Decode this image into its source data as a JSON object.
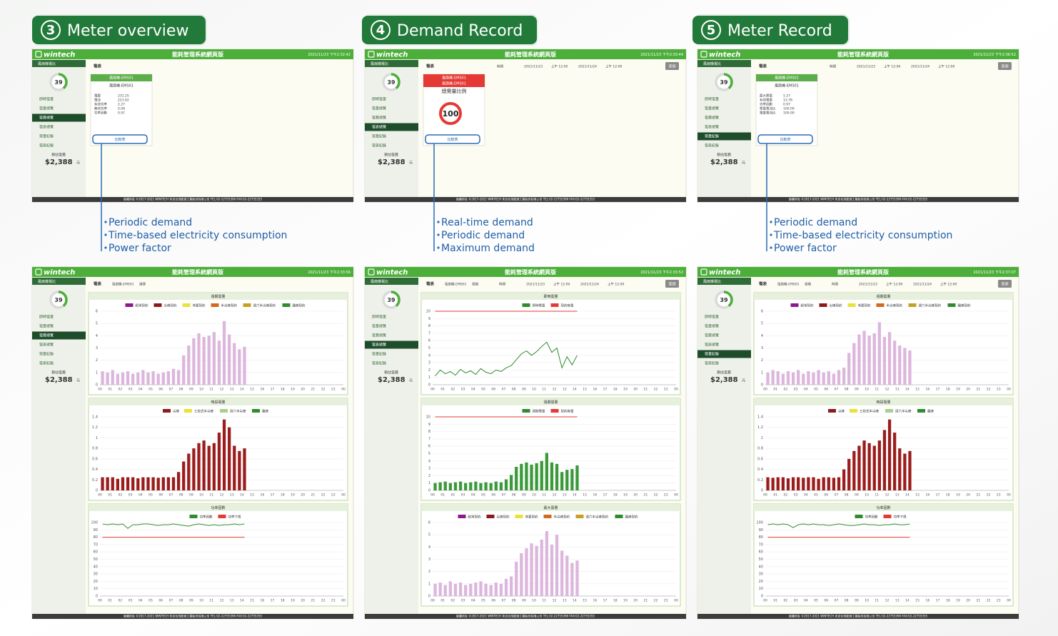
{
  "app": {
    "logo": "wintech",
    "system_title": "能耗管理系統網頁版",
    "site": "風扇機電比",
    "gauge": "39",
    "menu": [
      "即時電量",
      "電量總覽",
      "電費總覽",
      "電表總覽",
      "需量紀錄",
      "電表紀錄"
    ],
    "cost_label": "預估電費",
    "cost": "$2,388",
    "cost_unit": "元",
    "footer": "版權所有 ©2017-2021 WINTECH 禾自台灣能源工業股份有限公司 TEL:02-22755396 FAX:02-22755355"
  },
  "hours": [
    "00",
    "01",
    "02",
    "03",
    "04",
    "05",
    "06",
    "07",
    "08",
    "09",
    "10",
    "11",
    "12",
    "13",
    "14",
    "15",
    "16",
    "17",
    "18",
    "19",
    "20",
    "21",
    "22",
    "23",
    "00"
  ],
  "panels": [
    {
      "number": "3",
      "title": "Meter overview",
      "bullets": [
        "Periodic demand",
        "Time-based electricity consumption",
        "Power factor"
      ],
      "top_screen": {
        "timestamp": "2021/11/23 下午2:32:42",
        "active_menu": 3,
        "toolbar": {
          "tab": "電表",
          "fields": []
        },
        "card": {
          "header": [
            "風扇機-EMS01"
          ],
          "header_color": "#5cae4a",
          "subtitle": "風扇機-EMS01",
          "rows": [
            [
              "電壓",
              "231.25"
            ],
            [
              "電流",
              "221.62"
            ],
            [
              "有效功率",
              "2.27"
            ],
            [
              "無效功率",
              "0.08"
            ],
            [
              "功率因數",
              "0.97"
            ]
          ],
          "button": "比較表"
        }
      },
      "bottom_screen": {
        "timestamp": "2021/11/23 下午2:33:56",
        "active_menu": 3,
        "toolbar": {
          "tab": "電表",
          "fields": [
            "風扇機-EMS01",
            "選擇"
          ]
        },
        "charts": [
          {
            "type": "bar",
            "title": "週期需量",
            "color": "#dcb6dc",
            "legend": [
              {
                "name": "經常契約",
                "color": "#8b1a8b"
              },
              {
                "name": "尖峰契約",
                "color": "#8b1a1a"
              },
              {
                "name": "非夏契約",
                "color": "#e8e23a"
              },
              {
                "name": "半尖峰契約",
                "color": "#d2691e"
              },
              {
                "name": "週六半尖峰契約",
                "color": "#c8a020"
              },
              {
                "name": "離峰契約",
                "color": "#2e8b2e"
              }
            ],
            "ylim": [
              0,
              6
            ],
            "yticks": [
              0,
              1,
              2,
              3,
              4,
              5,
              6
            ],
            "values": [
              1.1,
              1.0,
              1.2,
              0.9,
              1.0,
              1.1,
              0.9,
              1.0,
              1.2,
              1.0,
              1.1,
              0.9,
              1.0,
              1.1,
              1.3,
              1.2,
              2.4,
              3.2,
              3.8,
              4.2,
              3.9,
              4.0,
              4.3,
              3.6,
              5.2,
              4.1,
              3.4,
              2.9,
              3.1
            ]
          },
          {
            "type": "bar",
            "title": "時段電量",
            "color": "#9b1c1c",
            "legend": [
              {
                "name": "尖峰",
                "color": "#8b1a1a"
              },
              {
                "name": "三段式半尖峰",
                "color": "#e8e23a"
              },
              {
                "name": "周六半尖峰",
                "color": "#a8d08d"
              },
              {
                "name": "離峰",
                "color": "#2e8b2e"
              }
            ],
            "ylim": [
              0,
              1.4
            ],
            "yticks": [
              0,
              0.2,
              0.4,
              0.6,
              0.8,
              1,
              1.2,
              1.4
            ],
            "values": [
              0.25,
              0.25,
              0.25,
              0.22,
              0.25,
              0.25,
              0.25,
              0.23,
              0.25,
              0.25,
              0.25,
              0.24,
              0.25,
              0.25,
              0.25,
              0.35,
              0.55,
              0.7,
              0.8,
              0.9,
              0.95,
              0.85,
              0.9,
              1.1,
              1.35,
              1.2,
              0.85,
              0.75,
              0.8
            ]
          },
          {
            "type": "line",
            "title": "功率因數",
            "color": "#2e8b2e",
            "limit": 80,
            "limit_color": "#e53935",
            "legend": [
              {
                "name": "功率因數",
                "color": "#2e8b2e"
              },
              {
                "name": "功率下限",
                "color": "#e53935"
              }
            ],
            "ylim": [
              0,
              100
            ],
            "yticks": [
              0,
              10,
              20,
              30,
              40,
              50,
              60,
              70,
              80,
              90,
              100
            ],
            "values": [
              98,
              97,
              98,
              97,
              98,
              92,
              97,
              97,
              98,
              98,
              97,
              96,
              97,
              97,
              98,
              97,
              96,
              95,
              97,
              98,
              97,
              96,
              97,
              96,
              97,
              97,
              98,
              97,
              98
            ]
          }
        ]
      }
    },
    {
      "number": "4",
      "title": "Demand Record",
      "bullets": [
        "Real-time demand",
        "Periodic demand",
        "Maximum demand"
      ],
      "top_screen": {
        "timestamp": "2021/11/23 下午2:33:44",
        "active_menu": 4,
        "toolbar": {
          "tab": "電表",
          "fields": [
            "時間",
            "2021/11/23",
            "上午 12:00",
            "2021/11/24",
            "上午 12:00"
          ],
          "query": "查詢"
        },
        "card": {
          "header": [
            "風扇機-EMS01",
            "風扇機-EMS01"
          ],
          "header_color": "#e53935",
          "subtitle": "總需量比例",
          "gauge": "100",
          "button": "比較表"
        }
      },
      "bottom_screen": {
        "timestamp": "2021/11/23 下午2:33:52",
        "active_menu": 4,
        "toolbar": {
          "tab": "電表",
          "fields": [
            "風扇機-EMS01",
            "週期",
            "時間",
            "2021/11/23",
            "上午 12:00",
            "2021/11/24",
            "上午 12:00"
          ],
          "query": "查詢"
        },
        "charts": [
          {
            "type": "line",
            "title": "即時需量",
            "color": "#2e8b2e",
            "limit": 10,
            "limit_color": "#e53935",
            "legend": [
              {
                "name": "即時需量",
                "color": "#2e8b2e"
              },
              {
                "name": "契約容量",
                "color": "#e53935"
              }
            ],
            "ylim": [
              0,
              10
            ],
            "yticks": [
              0,
              1,
              2,
              3,
              4,
              5,
              6,
              7,
              8,
              9,
              10
            ],
            "values": [
              1.2,
              2.0,
              1.5,
              1.8,
              1.3,
              2.1,
              1.6,
              1.9,
              1.4,
              2.2,
              1.7,
              1.5,
              2.0,
              1.8,
              2.3,
              2.6,
              3.4,
              4.2,
              4.6,
              4.0,
              4.5,
              5.2,
              5.8,
              4.4,
              5.0,
              2.3,
              3.8,
              2.7,
              4.0
            ]
          },
          {
            "type": "bar",
            "title": "週期需量",
            "color": "#3a9a3a",
            "limit": 10,
            "limit_color": "#e53935",
            "legend": [
              {
                "name": "週期需量",
                "color": "#2e8b2e"
              },
              {
                "name": "契約容量",
                "color": "#e53935"
              }
            ],
            "ylim": [
              0,
              10
            ],
            "yticks": [
              0,
              1,
              2,
              3,
              4,
              5,
              6,
              7,
              8,
              9,
              10
            ],
            "values": [
              1.0,
              1.1,
              1.2,
              1.0,
              1.1,
              1.2,
              1.0,
              1.1,
              1.2,
              1.0,
              1.1,
              1.0,
              1.2,
              1.1,
              1.5,
              2.1,
              3.2,
              3.6,
              3.8,
              3.5,
              3.7,
              4.0,
              5.1,
              3.8,
              3.6,
              2.5,
              2.8,
              2.9,
              3.4
            ]
          },
          {
            "type": "bar",
            "title": "最大需量",
            "color": "#dcb6dc",
            "legend": [
              {
                "name": "經常契約",
                "color": "#8b1a8b"
              },
              {
                "name": "尖峰契約",
                "color": "#8b1a1a"
              },
              {
                "name": "非夏契約",
                "color": "#e8e23a"
              },
              {
                "name": "半尖峰契約",
                "color": "#d2691e"
              },
              {
                "name": "週六半尖峰契約",
                "color": "#c8a020"
              },
              {
                "name": "離峰契約",
                "color": "#2e8b2e"
              }
            ],
            "ylim": [
              0,
              6
            ],
            "yticks": [
              0,
              1,
              2,
              3,
              4,
              5,
              6
            ],
            "values": [
              1.0,
              1.1,
              0.9,
              1.2,
              1.0,
              1.1,
              0.9,
              1.0,
              1.1,
              1.2,
              1.0,
              0.9,
              1.1,
              1.0,
              1.4,
              1.6,
              2.8,
              3.5,
              3.9,
              4.3,
              4.1,
              4.6,
              5.3,
              4.2,
              5.0,
              3.7,
              3.3,
              2.7,
              2.9
            ]
          }
        ]
      }
    },
    {
      "number": "5",
      "title": "Meter Record",
      "bullets": [
        "Periodic demand",
        "Time-based electricity consumption",
        "Power factor"
      ],
      "top_screen": {
        "timestamp": "2021/11/23 下午2:36:52",
        "active_menu": 5,
        "toolbar": {
          "tab": "電表",
          "fields": [
            "時間",
            "2021/11/23",
            "上午 12:00",
            "2021/11/24",
            "上午 12:00"
          ],
          "query": "查詢"
        },
        "card": {
          "header": [
            "風扇機-EMS01"
          ],
          "header_color": "#5cae4a",
          "subtitle": "風扇機-EMS01",
          "rows": [
            [
              "最大需量",
              "5.27"
            ],
            [
              "有效電量",
              "13.78"
            ],
            [
              "功率因數",
              "0.97"
            ],
            [
              "需量電流比",
              "100.00"
            ],
            [
              "電量電流比",
              "100.00"
            ]
          ],
          "button": "比較表"
        }
      },
      "bottom_screen": {
        "timestamp": "2021/11/23 下午2:37:07",
        "active_menu": 5,
        "toolbar": {
          "tab": "電表",
          "fields": [
            "風扇機-EMS01",
            "週期",
            "時間",
            "2021/11/23",
            "上午 12:00",
            "2021/11/24",
            "上午 12:00"
          ],
          "query": "查詢"
        },
        "charts": [
          {
            "type": "bar",
            "title": "週期需量",
            "color": "#dcb6dc",
            "legend": [
              {
                "name": "經常契約",
                "color": "#8b1a8b"
              },
              {
                "name": "尖峰契約",
                "color": "#8b1a1a"
              },
              {
                "name": "非夏契約",
                "color": "#e8e23a"
              },
              {
                "name": "半尖峰契約",
                "color": "#d2691e"
              },
              {
                "name": "週六半尖峰契約",
                "color": "#c8a020"
              },
              {
                "name": "離峰契約",
                "color": "#2e8b2e"
              }
            ],
            "ylim": [
              0,
              6
            ],
            "yticks": [
              0,
              1,
              2,
              3,
              4,
              5,
              6
            ],
            "values": [
              1.0,
              1.2,
              1.1,
              0.9,
              1.1,
              1.0,
              1.2,
              0.9,
              1.1,
              1.0,
              1.2,
              1.0,
              1.1,
              0.9,
              1.2,
              1.4,
              2.6,
              3.4,
              4.1,
              4.4,
              4.0,
              4.2,
              5.1,
              3.9,
              4.3,
              3.6,
              3.2,
              3.0,
              2.8
            ]
          },
          {
            "type": "bar",
            "title": "時段電量",
            "color": "#9b1c1c",
            "legend": [
              {
                "name": "尖峰",
                "color": "#8b1a1a"
              },
              {
                "name": "三段式半尖峰",
                "color": "#e8e23a"
              },
              {
                "name": "周六半尖峰",
                "color": "#a8d08d"
              },
              {
                "name": "離峰",
                "color": "#2e8b2e"
              }
            ],
            "ylim": [
              0,
              1.4
            ],
            "yticks": [
              0,
              0.2,
              0.4,
              0.6,
              0.8,
              1,
              1.2,
              1.4
            ],
            "values": [
              0.25,
              0.24,
              0.25,
              0.25,
              0.23,
              0.25,
              0.25,
              0.24,
              0.25,
              0.25,
              0.22,
              0.25,
              0.25,
              0.24,
              0.25,
              0.4,
              0.6,
              0.75,
              0.85,
              0.95,
              0.9,
              0.85,
              0.95,
              1.15,
              1.35,
              1.1,
              0.8,
              0.7,
              0.75
            ]
          },
          {
            "type": "line",
            "title": "功率因數",
            "color": "#2e8b2e",
            "limit": 80,
            "limit_color": "#e53935",
            "legend": [
              {
                "name": "功率因數",
                "color": "#2e8b2e"
              },
              {
                "name": "功率下限",
                "color": "#e53935"
              }
            ],
            "ylim": [
              0,
              100
            ],
            "yticks": [
              0,
              10,
              20,
              30,
              40,
              50,
              60,
              70,
              80,
              90,
              100
            ],
            "values": [
              97,
              98,
              97,
              98,
              97,
              93,
              97,
              98,
              97,
              98,
              97,
              97,
              96,
              97,
              98,
              97,
              96,
              96,
              97,
              98,
              97,
              97,
              96,
              97,
              97,
              98,
              97,
              97,
              98
            ]
          }
        ]
      }
    }
  ]
}
